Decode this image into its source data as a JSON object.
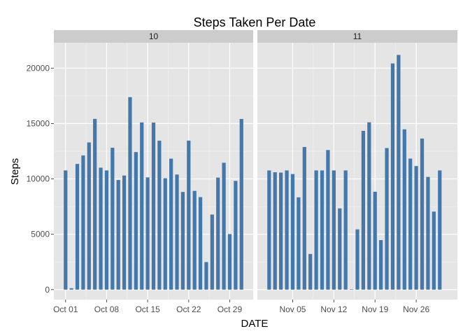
{
  "chart_data": {
    "type": "bar",
    "title": "Steps Taken Per Date",
    "xlabel": "DATE",
    "ylabel": "Steps",
    "ylim": [
      -900,
      22300
    ],
    "yticks": [
      0,
      5000,
      10000,
      15000,
      20000
    ],
    "grid": true,
    "bar_color": "#4477AA",
    "panel_bg": "#E5E5E5",
    "strip_bg": "#CCCCCC",
    "panels": [
      {
        "strip_label": "10",
        "xlim": [
          "2012-09-29",
          "2012-11-02"
        ],
        "xticks": [
          {
            "date": "2012-10-01",
            "label": "Oct 01"
          },
          {
            "date": "2012-10-08",
            "label": "Oct 08"
          },
          {
            "date": "2012-10-15",
            "label": "Oct 15"
          },
          {
            "date": "2012-10-22",
            "label": "Oct 22"
          },
          {
            "date": "2012-10-29",
            "label": "Oct 29"
          }
        ],
        "dates": [
          "2012-10-01",
          "2012-10-02",
          "2012-10-03",
          "2012-10-04",
          "2012-10-05",
          "2012-10-06",
          "2012-10-07",
          "2012-10-08",
          "2012-10-09",
          "2012-10-10",
          "2012-10-11",
          "2012-10-12",
          "2012-10-13",
          "2012-10-14",
          "2012-10-15",
          "2012-10-16",
          "2012-10-17",
          "2012-10-18",
          "2012-10-19",
          "2012-10-20",
          "2012-10-21",
          "2012-10-22",
          "2012-10-23",
          "2012-10-24",
          "2012-10-25",
          "2012-10-26",
          "2012-10-27",
          "2012-10-28",
          "2012-10-29",
          "2012-10-30",
          "2012-10-31"
        ],
        "values": [
          10766,
          126,
          11352,
          12116,
          13294,
          15420,
          11015,
          10766,
          12811,
          9900,
          10304,
          17382,
          12426,
          15098,
          10139,
          15084,
          13452,
          10056,
          11829,
          10395,
          8821,
          13460,
          8918,
          8355,
          2492,
          6778,
          10119,
          11458,
          5018,
          9819,
          15414
        ]
      },
      {
        "strip_label": "11",
        "xlim": [
          "2012-10-30",
          "2012-12-03"
        ],
        "xticks": [
          {
            "date": "2012-11-05",
            "label": "Nov 05"
          },
          {
            "date": "2012-11-12",
            "label": "Nov 12"
          },
          {
            "date": "2012-11-19",
            "label": "Nov 19"
          },
          {
            "date": "2012-11-26",
            "label": "Nov 26"
          }
        ],
        "dates": [
          "2012-11-01",
          "2012-11-02",
          "2012-11-03",
          "2012-11-04",
          "2012-11-05",
          "2012-11-06",
          "2012-11-07",
          "2012-11-08",
          "2012-11-09",
          "2012-11-10",
          "2012-11-11",
          "2012-11-12",
          "2012-11-13",
          "2012-11-14",
          "2012-11-15",
          "2012-11-16",
          "2012-11-17",
          "2012-11-18",
          "2012-11-19",
          "2012-11-20",
          "2012-11-21",
          "2012-11-22",
          "2012-11-23",
          "2012-11-24",
          "2012-11-25",
          "2012-11-26",
          "2012-11-27",
          "2012-11-28",
          "2012-11-29",
          "2012-11-30"
        ],
        "values": [
          10766,
          10600,
          10571,
          10766,
          10439,
          8334,
          12883,
          3219,
          10766,
          10766,
          12608,
          10765,
          7336,
          10766,
          41,
          5441,
          14339,
          15110,
          8841,
          4472,
          12787,
          20427,
          21194,
          14478,
          11834,
          11162,
          13646,
          10183,
          7047,
          10766
        ]
      }
    ]
  }
}
